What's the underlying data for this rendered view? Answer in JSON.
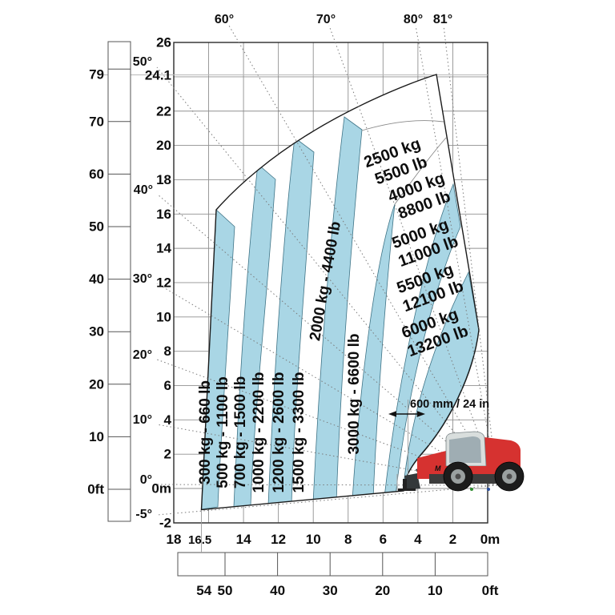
{
  "chart": {
    "kind": "telehandler-load-capacity-chart",
    "colors": {
      "zone_blue": "#a9d6e5",
      "zone_white": "#ffffff",
      "grid": "#909090",
      "border": "#2b2b2b",
      "dotted_line": "#7a7a7a",
      "machine_red": "#d63230"
    },
    "angle_labels": [
      "-5°",
      "0°",
      "10°",
      "20°",
      "30°",
      "40°",
      "50°",
      "60°",
      "70°",
      "80°",
      "81°"
    ],
    "height_scale_m": [
      "26",
      "24.1",
      "22",
      "20",
      "18",
      "16",
      "14",
      "12",
      "10",
      "8",
      "6",
      "4",
      "2",
      "0m",
      "-2"
    ],
    "height_scale_ft": [
      "79",
      "70",
      "60",
      "50",
      "40",
      "30",
      "20",
      "10",
      "0ft"
    ],
    "reach_scale_m": [
      "18",
      "16.5",
      "14",
      "12",
      "10",
      "8",
      "6",
      "4",
      "2",
      "0m"
    ],
    "reach_scale_ft": [
      "54",
      "50",
      "40",
      "30",
      "20",
      "10",
      "0ft"
    ],
    "zones": [
      {
        "label": "300 kg - 660 lb",
        "kg": 300,
        "lb": 660,
        "color": "blue"
      },
      {
        "label": "500 kg - 1100 lb",
        "kg": 500,
        "lb": 1100,
        "color": "white"
      },
      {
        "label": "700 kg - 1500 lb",
        "kg": 700,
        "lb": 1500,
        "color": "blue"
      },
      {
        "label": "1000 kg - 2200 lb",
        "kg": 1000,
        "lb": 2200,
        "color": "white"
      },
      {
        "label": "1200 kg - 2600 lb",
        "kg": 1200,
        "lb": 2600,
        "color": "blue"
      },
      {
        "label": "1500 kg - 3300 lb",
        "kg": 1500,
        "lb": 3300,
        "color": "white"
      },
      {
        "label": "2000 kg - 4400 lb",
        "kg": 2000,
        "lb": 4400,
        "color": "blue"
      },
      {
        "line1": "2500 kg",
        "line2": "5500 lb",
        "kg": 2500,
        "lb": 5500,
        "color": "white"
      },
      {
        "label": "3000 kg - 6600 lb",
        "kg": 3000,
        "lb": 6600,
        "color": "blue"
      },
      {
        "line1": "4000 kg",
        "line2": "8800 lb",
        "kg": 4000,
        "lb": 8800,
        "color": "white"
      },
      {
        "line1": "5000 kg",
        "line2": "11000 lb",
        "kg": 5000,
        "lb": 11000,
        "color": "blue"
      },
      {
        "line1": "5500 kg",
        "line2": "12100 lb",
        "kg": 5500,
        "lb": 12100,
        "color": "white"
      },
      {
        "line1": "6000 kg",
        "line2": "13200 lb",
        "kg": 6000,
        "lb": 13200,
        "color": "blue"
      }
    ],
    "annotation": "600 mm / 24 in",
    "machine": {
      "logo": "M"
    }
  },
  "chart_data": {
    "type": "area",
    "title": "Telehandler load capacity chart (height vs reach)",
    "x_axis": {
      "unit_primary": "m",
      "unit_secondary": "ft",
      "range_m": [
        0,
        18
      ],
      "range_ft": [
        0,
        54
      ],
      "max_reach_m": 16.5,
      "tick_labels_m": [
        "18",
        "16.5",
        "14",
        "12",
        "10",
        "8",
        "6",
        "4",
        "2",
        "0m"
      ],
      "tick_labels_ft": [
        "54",
        "50",
        "40",
        "30",
        "20",
        "10",
        "0ft"
      ]
    },
    "y_axis": {
      "unit_primary": "m",
      "unit_secondary": "ft",
      "range_m": [
        -2,
        26
      ],
      "max_height_m": 24.1,
      "max_height_ft": 79,
      "tick_labels_m": [
        "26",
        "24.1",
        "22",
        "20",
        "18",
        "16",
        "14",
        "12",
        "10",
        "8",
        "6",
        "4",
        "2",
        "0m",
        "-2"
      ],
      "tick_labels_ft": [
        "79",
        "70",
        "60",
        "50",
        "40",
        "30",
        "20",
        "10",
        "0ft"
      ]
    },
    "boom_angles_deg": [
      -5,
      0,
      10,
      20,
      30,
      40,
      50,
      60,
      70,
      80,
      81
    ],
    "capacity_zones_kg": [
      300,
      500,
      700,
      1000,
      1200,
      1500,
      2000,
      2500,
      3000,
      4000,
      5000,
      5500,
      6000
    ],
    "capacity_zones_lb": [
      660,
      1100,
      1500,
      2200,
      2600,
      3300,
      4400,
      5500,
      6600,
      8800,
      11000,
      12100,
      13200
    ],
    "load_center": "600 mm / 24 in",
    "grid": "on",
    "legend": "none"
  }
}
